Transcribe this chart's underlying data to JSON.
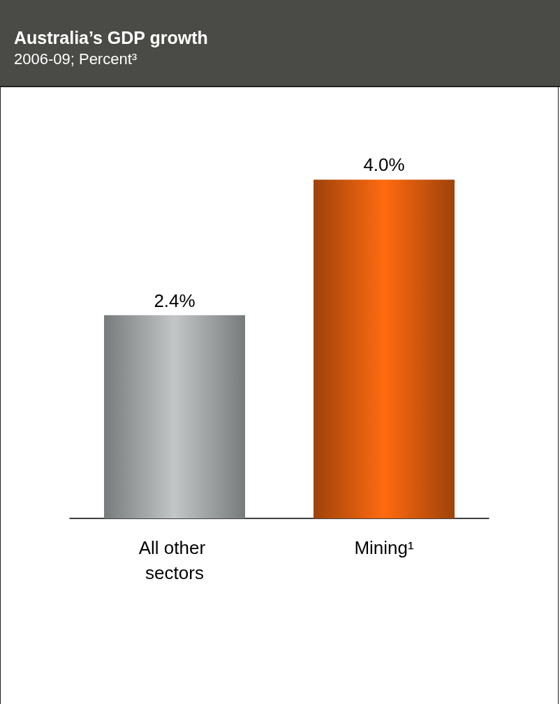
{
  "chart_data": {
    "type": "bar",
    "title": "Australia’s GDP growth",
    "subtitle": "2006-09; Percent³",
    "categories": [
      "All other sectors",
      "Mining¹"
    ],
    "values": [
      2.4,
      4.0
    ],
    "colors": [
      "#c2c6c6",
      "#ff6a10"
    ],
    "value_labels": [
      "2.4%",
      "4.0%"
    ],
    "tick_labels": "x"
  }
}
